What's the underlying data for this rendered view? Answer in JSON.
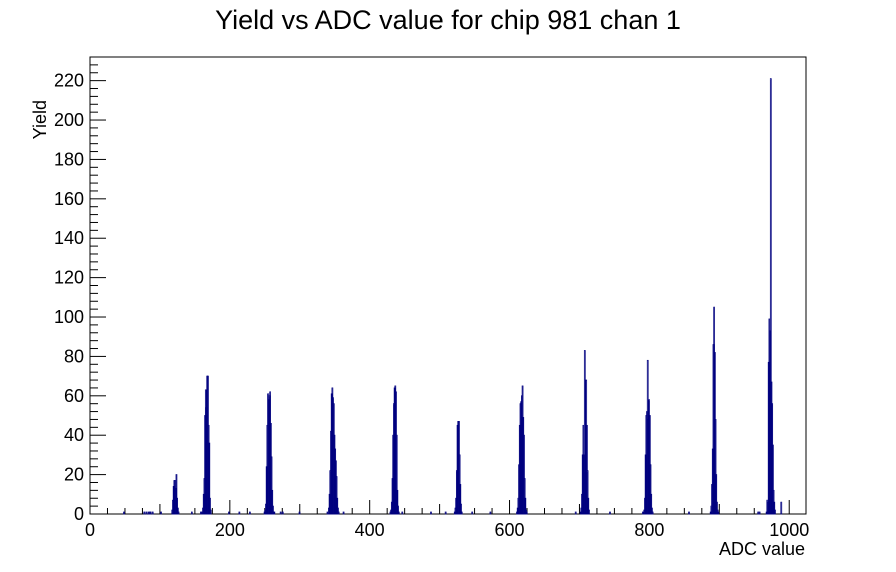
{
  "chart_data": {
    "type": "histogram",
    "title": "Yield vs ADC value for chip 981 chan 1",
    "xlabel": "ADC value",
    "ylabel": "Yield",
    "xlim": [
      0,
      1024
    ],
    "ylim": [
      0,
      232
    ],
    "x_ticks": [
      0,
      200,
      400,
      600,
      800,
      1000
    ],
    "y_ticks": [
      0,
      20,
      40,
      60,
      80,
      100,
      120,
      140,
      160,
      180,
      200,
      220
    ],
    "bin_width": 1,
    "line_color": "#00007f",
    "grid": false,
    "bins": [
      [
        48,
        1
      ],
      [
        77,
        1
      ],
      [
        80,
        1
      ],
      [
        83,
        1
      ],
      [
        85,
        1
      ],
      [
        86,
        1
      ],
      [
        89,
        1
      ],
      [
        101,
        1
      ],
      [
        117,
        2
      ],
      [
        118,
        7
      ],
      [
        119,
        14
      ],
      [
        120,
        17
      ],
      [
        121,
        17
      ],
      [
        122,
        13
      ],
      [
        123,
        20
      ],
      [
        124,
        8
      ],
      [
        125,
        3
      ],
      [
        126,
        1
      ],
      [
        145,
        1
      ],
      [
        158,
        1
      ],
      [
        159,
        1
      ],
      [
        161,
        3
      ],
      [
        162,
        10
      ],
      [
        163,
        18
      ],
      [
        164,
        50
      ],
      [
        165,
        63
      ],
      [
        166,
        54
      ],
      [
        167,
        70
      ],
      [
        168,
        70
      ],
      [
        169,
        45
      ],
      [
        170,
        36
      ],
      [
        171,
        8
      ],
      [
        172,
        2
      ],
      [
        198,
        1
      ],
      [
        213,
        1
      ],
      [
        228,
        1
      ],
      [
        249,
        1
      ],
      [
        250,
        2
      ],
      [
        251,
        5
      ],
      [
        252,
        24
      ],
      [
        253,
        45
      ],
      [
        254,
        61
      ],
      [
        255,
        58
      ],
      [
        256,
        60
      ],
      [
        257,
        62
      ],
      [
        258,
        46
      ],
      [
        259,
        29
      ],
      [
        260,
        12
      ],
      [
        261,
        4
      ],
      [
        262,
        1
      ],
      [
        263,
        1
      ],
      [
        272,
        1
      ],
      [
        275,
        1
      ],
      [
        299,
        1
      ],
      [
        339,
        1
      ],
      [
        341,
        3
      ],
      [
        342,
        10
      ],
      [
        343,
        22
      ],
      [
        344,
        42
      ],
      [
        345,
        61
      ],
      [
        346,
        64
      ],
      [
        347,
        59
      ],
      [
        348,
        56
      ],
      [
        349,
        40
      ],
      [
        350,
        33
      ],
      [
        351,
        27
      ],
      [
        352,
        19
      ],
      [
        353,
        8
      ],
      [
        354,
        3
      ],
      [
        355,
        1
      ],
      [
        362,
        1
      ],
      [
        429,
        1
      ],
      [
        430,
        2
      ],
      [
        431,
        6
      ],
      [
        432,
        18
      ],
      [
        433,
        40
      ],
      [
        434,
        56
      ],
      [
        435,
        64
      ],
      [
        436,
        65
      ],
      [
        437,
        62
      ],
      [
        438,
        40
      ],
      [
        439,
        12
      ],
      [
        440,
        4
      ],
      [
        441,
        1
      ],
      [
        446,
        1
      ],
      [
        487,
        1
      ],
      [
        508,
        1
      ],
      [
        521,
        1
      ],
      [
        522,
        3
      ],
      [
        523,
        8
      ],
      [
        524,
        22
      ],
      [
        525,
        45
      ],
      [
        526,
        47
      ],
      [
        527,
        47
      ],
      [
        528,
        30
      ],
      [
        529,
        15
      ],
      [
        530,
        5
      ],
      [
        531,
        1
      ],
      [
        546,
        1
      ],
      [
        572,
        1
      ],
      [
        610,
        1
      ],
      [
        611,
        3
      ],
      [
        612,
        8
      ],
      [
        613,
        25
      ],
      [
        614,
        45
      ],
      [
        615,
        56
      ],
      [
        616,
        57
      ],
      [
        617,
        60
      ],
      [
        618,
        65
      ],
      [
        619,
        49
      ],
      [
        620,
        40
      ],
      [
        621,
        18
      ],
      [
        622,
        8
      ],
      [
        623,
        2
      ],
      [
        624,
        1
      ],
      [
        694,
        1
      ],
      [
        701,
        1
      ],
      [
        702,
        3
      ],
      [
        703,
        10
      ],
      [
        704,
        30
      ],
      [
        705,
        45
      ],
      [
        706,
        30
      ],
      [
        707,
        83
      ],
      [
        708,
        21
      ],
      [
        709,
        68
      ],
      [
        710,
        45
      ],
      [
        711,
        22
      ],
      [
        712,
        8
      ],
      [
        713,
        2
      ],
      [
        743,
        1
      ],
      [
        790,
        1
      ],
      [
        792,
        2
      ],
      [
        793,
        8
      ],
      [
        794,
        30
      ],
      [
        795,
        50
      ],
      [
        796,
        52
      ],
      [
        797,
        78
      ],
      [
        798,
        48
      ],
      [
        799,
        58
      ],
      [
        800,
        50
      ],
      [
        801,
        25
      ],
      [
        802,
        10
      ],
      [
        803,
        3
      ],
      [
        804,
        1
      ],
      [
        856,
        1
      ],
      [
        887,
        1
      ],
      [
        888,
        4
      ],
      [
        889,
        15
      ],
      [
        890,
        33
      ],
      [
        891,
        86
      ],
      [
        892,
        105
      ],
      [
        893,
        82
      ],
      [
        894,
        48
      ],
      [
        895,
        20
      ],
      [
        896,
        6
      ],
      [
        897,
        2
      ],
      [
        898,
        1
      ],
      [
        955,
        1
      ],
      [
        957,
        1
      ],
      [
        967,
        1
      ],
      [
        968,
        7
      ],
      [
        969,
        6
      ],
      [
        970,
        77
      ],
      [
        971,
        99
      ],
      [
        972,
        93
      ],
      [
        973,
        221
      ],
      [
        974,
        67
      ],
      [
        975,
        56
      ],
      [
        976,
        35
      ],
      [
        977,
        12
      ],
      [
        978,
        6
      ],
      [
        979,
        2
      ],
      [
        988,
        6
      ]
    ]
  }
}
